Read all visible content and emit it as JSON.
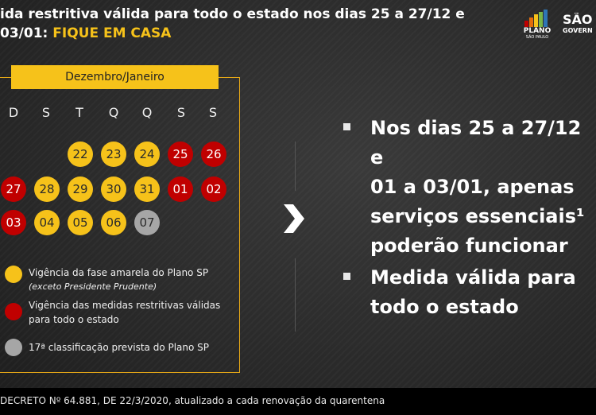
{
  "header": {
    "title_part1": "ida restritiva válida para todo o estado nos dias 25 a 27/12 e",
    "title_part2": "03/01: ",
    "title_highlight": "FIQUE EM CASA",
    "highlight_color": "#f6c21a",
    "logo_plano_line1": "PLANO",
    "logo_plano_line2": "SÃO PAULO",
    "logo_sao_line1": "SÃO",
    "logo_sao_line2": "GOVERN"
  },
  "calendar": {
    "month_label": "Dezembro/Janeiro",
    "weekdays": [
      "D",
      "S",
      "T",
      "Q",
      "Q",
      "S",
      "S"
    ],
    "days": [
      {
        "label": "22",
        "status": "yellow"
      },
      {
        "label": "23",
        "status": "yellow"
      },
      {
        "label": "24",
        "status": "yellow"
      },
      {
        "label": "25",
        "status": "red"
      },
      {
        "label": "26",
        "status": "red"
      },
      {
        "label": "27",
        "status": "red"
      },
      {
        "label": "28",
        "status": "yellow"
      },
      {
        "label": "29",
        "status": "yellow"
      },
      {
        "label": "30",
        "status": "yellow"
      },
      {
        "label": "31",
        "status": "yellow"
      },
      {
        "label": "01",
        "status": "red"
      },
      {
        "label": "02",
        "status": "red"
      },
      {
        "label": "03",
        "status": "red"
      },
      {
        "label": "04",
        "status": "yellow"
      },
      {
        "label": "05",
        "status": "yellow"
      },
      {
        "label": "06",
        "status": "yellow"
      },
      {
        "label": "07",
        "status": "gray"
      }
    ],
    "colors": {
      "yellow": "#f6c21a",
      "red": "#c00000",
      "gray": "#a6a6a6"
    }
  },
  "legend": {
    "yellow_line1": "Vigência da fase amarela do Plano SP",
    "yellow_line2": "(exceto Presidente Prudente)",
    "red_line1": "Vigência das medidas restritivas válidas",
    "red_line2": "para todo o estado",
    "gray_line1": "17ª classificação prevista do Plano SP"
  },
  "bullets": {
    "b1_line1": "Nos dias 25 a 27/12 e",
    "b1_line2": "01 a 03/01, apenas",
    "b1_line3": "serviços essenciais¹",
    "b1_line4": "poderão funcionar",
    "b2_line1": "Medida válida para",
    "b2_line2": "todo o estado"
  },
  "footer": {
    "text": "DECRETO Nº 64.881, DE 22/3/2020, atualizado a cada renovação da quarentena"
  },
  "icons": {
    "chevron": "chevron-right-icon",
    "bullet": "square-bullet-icon"
  }
}
